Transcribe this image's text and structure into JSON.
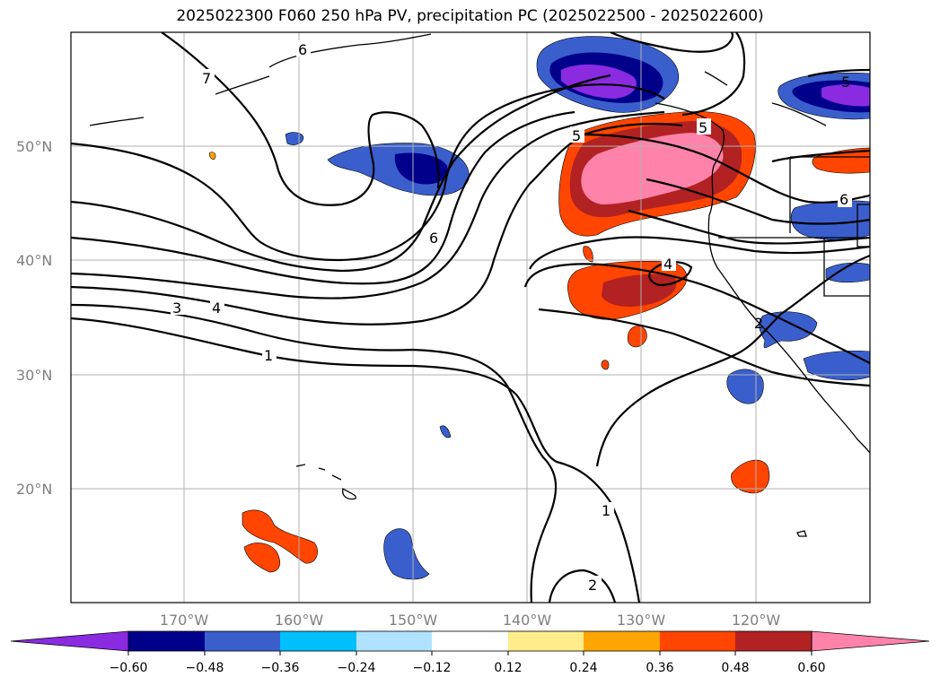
{
  "title": "2025022300 F060 250 hPa PV, precipitation PC (2025022500 - 2025022600)",
  "lat_labels": [
    "20°N",
    "30°N",
    "40°N",
    "50°N"
  ],
  "lon_labels": [
    "170°W",
    "160°W",
    "150°W",
    "140°W",
    "130°W",
    "120°W"
  ],
  "contour_labels": [
    "1",
    "2",
    "3",
    "4",
    "5",
    "6",
    "7"
  ],
  "colorbar": {
    "ticks": [
      "−0.60",
      "−0.48",
      "−0.36",
      "−0.24",
      "−0.12",
      "0.12",
      "0.24",
      "0.36",
      "0.48",
      "0.60"
    ],
    "colors": [
      "#8a2be2",
      "#00008b",
      "#3a5fcd",
      "#00bfff",
      "#b0e2ff",
      "#ffffff",
      "#ffec8b",
      "#ffa500",
      "#ff4500",
      "#b22222",
      "#ff82ab"
    ]
  }
}
